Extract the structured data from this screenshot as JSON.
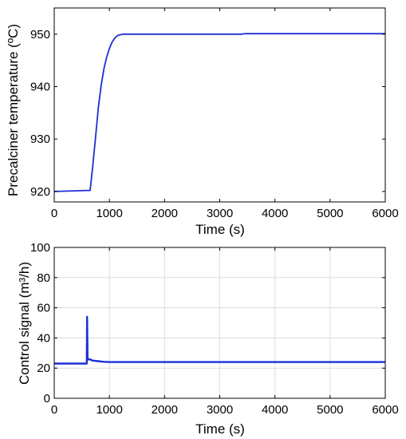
{
  "chart_data": [
    {
      "type": "line",
      "xlabel": "Time (s)",
      "ylabel": "Precalciner temperature (ºC)",
      "xlim": [
        0,
        6000
      ],
      "ylim": [
        918,
        955
      ],
      "xticks": [
        0,
        1000,
        2000,
        3000,
        4000,
        5000,
        6000
      ],
      "yticks": [
        920,
        930,
        940,
        950
      ],
      "grid": false,
      "series": [
        {
          "color": "#1c2fd6",
          "x": [
            0,
            600,
            650,
            700,
            750,
            800,
            850,
            900,
            950,
            1000,
            1050,
            1100,
            1150,
            1200,
            1250,
            1300,
            1500,
            2000,
            3000,
            3400,
            3450,
            4000,
            5000,
            6000
          ],
          "y": [
            920,
            920.2,
            920.2,
            925,
            930.5,
            936,
            940.2,
            943.4,
            945.6,
            947.3,
            948.5,
            949.3,
            949.75,
            949.9,
            950,
            950,
            950,
            950,
            950,
            950,
            950.1,
            950.1,
            950.1,
            950.1
          ]
        }
      ]
    },
    {
      "type": "line",
      "xlabel": "Time (s)",
      "ylabel": "Control signal (m³/h)",
      "xlim": [
        0,
        6000
      ],
      "ylim": [
        0,
        100
      ],
      "xticks": [
        0,
        1000,
        2000,
        3000,
        4000,
        5000,
        6000
      ],
      "yticks": [
        0,
        20,
        40,
        60,
        80,
        100
      ],
      "grid": true,
      "series": [
        {
          "color": "#1c2fd6",
          "x": [
            0,
            580,
            590,
            595,
            605,
            640,
            660,
            700,
            800,
            900,
            1000,
            1500,
            2000,
            3000,
            4000,
            5000,
            6000
          ],
          "y": [
            23,
            23,
            23,
            54,
            25.5,
            26,
            25.5,
            25,
            24.6,
            24.2,
            24,
            24,
            24,
            24,
            24,
            24,
            24
          ]
        }
      ]
    }
  ]
}
